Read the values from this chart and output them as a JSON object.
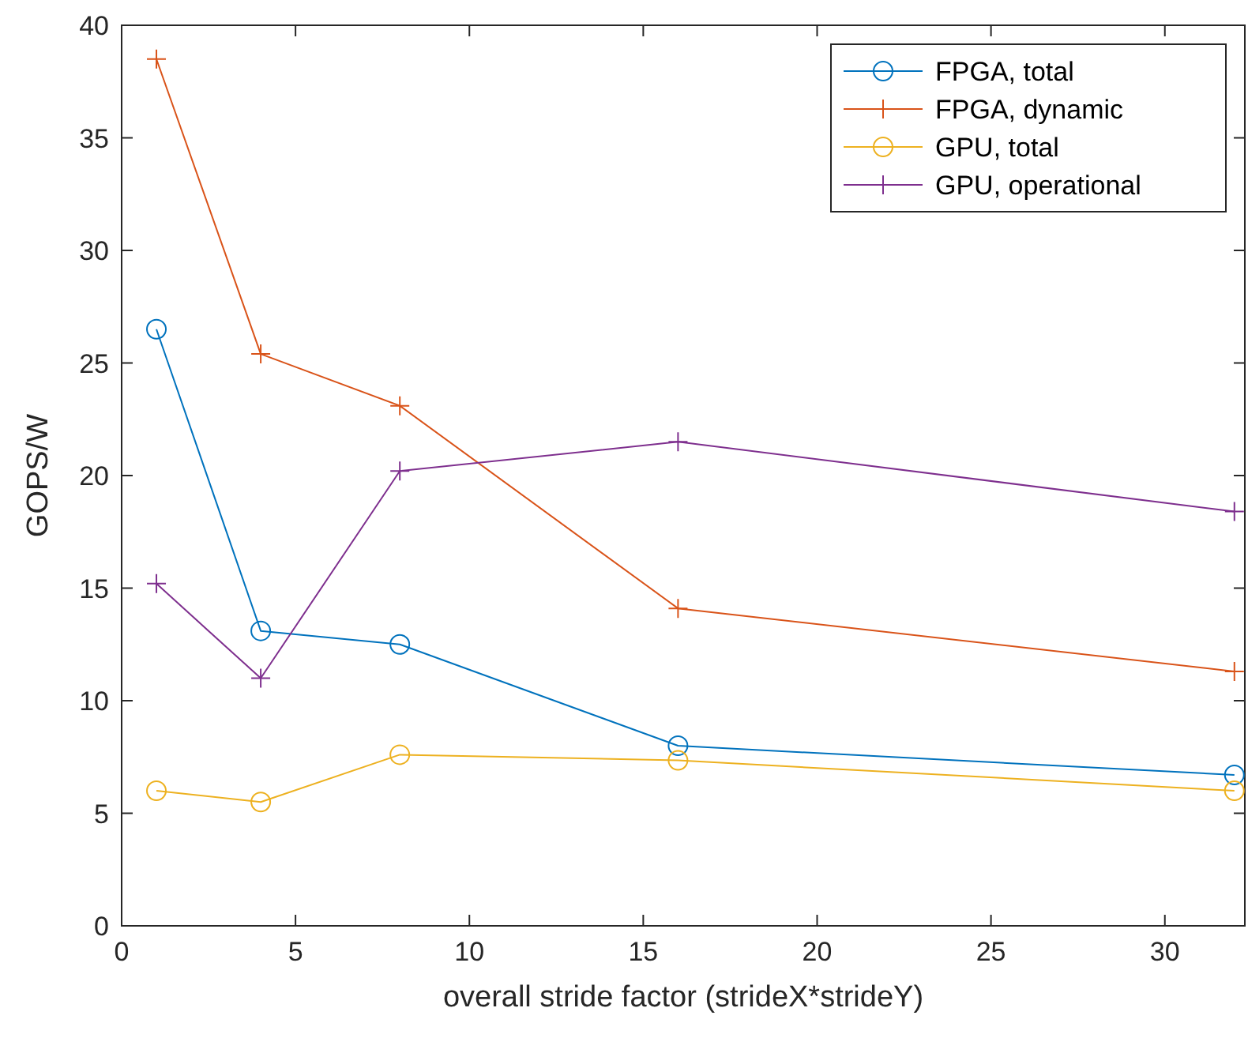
{
  "chart_data": {
    "type": "line",
    "xlabel": "overall stride factor (strideX*strideY)",
    "ylabel": "GOPS/W",
    "x": [
      1,
      4,
      8,
      16,
      32
    ],
    "xlim": [
      0,
      32.3
    ],
    "xticks": [
      0,
      5,
      10,
      15,
      20,
      25,
      30
    ],
    "ylim": [
      0,
      40
    ],
    "yticks": [
      0,
      5,
      10,
      15,
      20,
      25,
      30,
      35,
      40
    ],
    "grid": false,
    "legend": "top right",
    "series": [
      {
        "name": "FPGA, total",
        "color": "#0072bd",
        "marker": "circle",
        "values": [
          26.5,
          13.1,
          12.5,
          8.0,
          6.7
        ]
      },
      {
        "name": "FPGA, dynamic",
        "color": "#d95319",
        "marker": "cross",
        "values": [
          38.5,
          25.4,
          23.1,
          14.1,
          11.3
        ]
      },
      {
        "name": "GPU, total",
        "color": "#edb120",
        "marker": "circle",
        "values": [
          6.0,
          5.5,
          7.6,
          7.35,
          6.0
        ]
      },
      {
        "name": "GPU, operational",
        "color": "#7e2f8e",
        "marker": "cross",
        "values": [
          15.2,
          11.0,
          20.2,
          21.5,
          18.4
        ]
      }
    ]
  }
}
